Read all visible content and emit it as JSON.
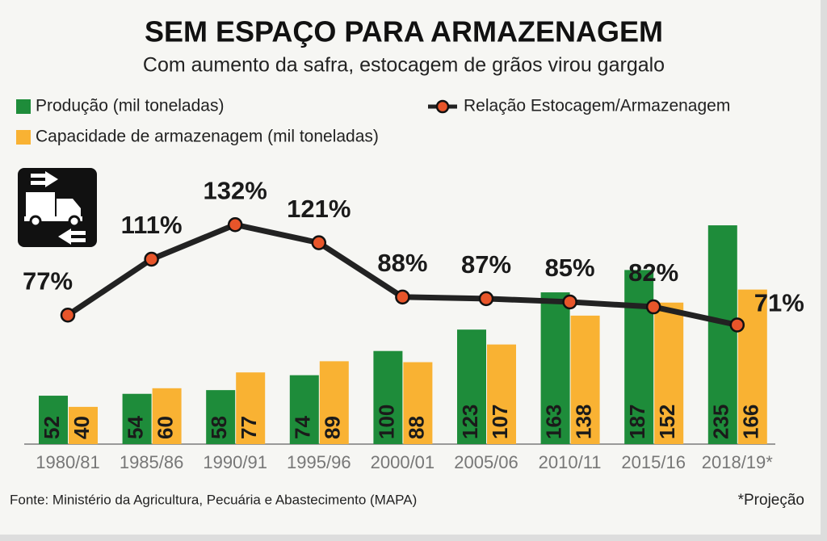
{
  "chart_data": {
    "type": "bar",
    "title": "SEM ESPAÇO PARA ARMAZENAGEM",
    "subtitle": "Com aumento da safra, estocagem de grãos virou gargalo",
    "categories": [
      "1980/81",
      "1985/86",
      "1990/91",
      "1995/96",
      "2000/01",
      "2005/06",
      "2010/11",
      "2015/16",
      "2018/19*"
    ],
    "series": [
      {
        "name": "Produção (mil toneladas)",
        "type": "bar",
        "color": "#1e8c3a",
        "values": [
          52,
          54,
          58,
          74,
          100,
          123,
          163,
          187,
          235
        ]
      },
      {
        "name": "Capacidade de armazenagem (mil toneladas)",
        "type": "bar",
        "color": "#f9b233",
        "values": [
          40,
          60,
          77,
          89,
          88,
          107,
          138,
          152,
          166
        ]
      },
      {
        "name": "Relação Estocagem/Armazenagem",
        "type": "line",
        "color": "#e8552a",
        "values": [
          77,
          111,
          132,
          121,
          88,
          87,
          85,
          82,
          71
        ],
        "value_labels": [
          "77%",
          "111%",
          "132%",
          "121%",
          "88%",
          "87%",
          "85%",
          "82%",
          "71%"
        ]
      }
    ],
    "source": "Fonte: Ministério da Agricultura, Pecuária e Abastecimento (MAPA)",
    "note": "*Projeção"
  }
}
